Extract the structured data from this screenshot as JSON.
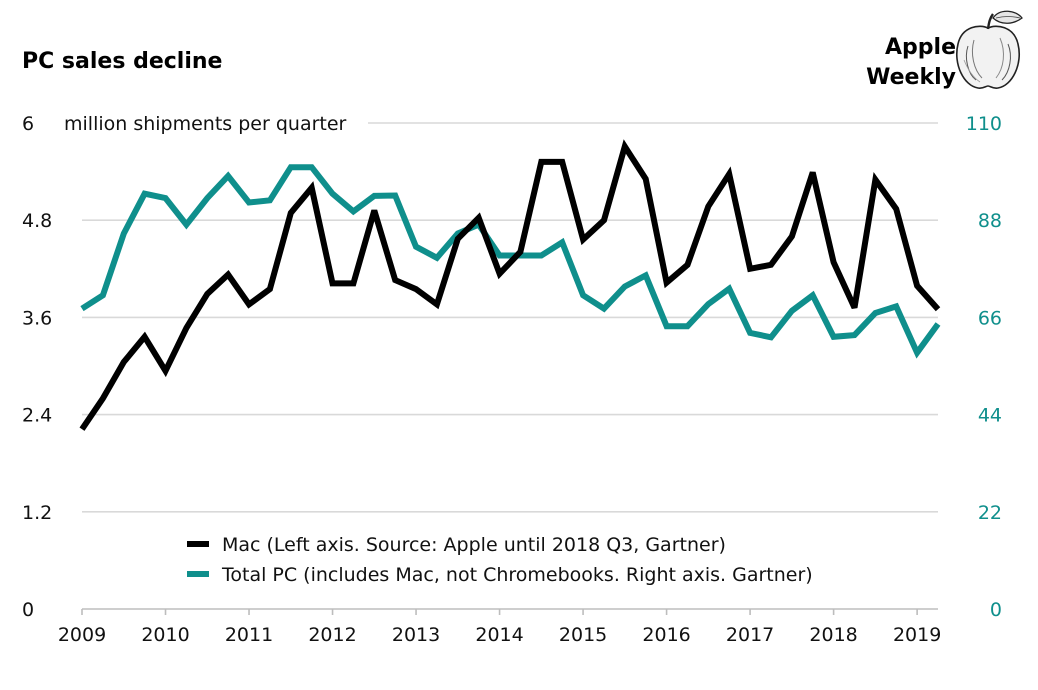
{
  "header": {
    "title": "PC sales decline",
    "brand_line1": "Apple",
    "brand_line2": "Weekly"
  },
  "logo": {
    "icon": "apple-engraving-icon"
  },
  "colors": {
    "mac": "#000000",
    "total_pc": "#0f8f8c",
    "grid": "#d9d9d9"
  },
  "chart_data": {
    "type": "line",
    "title": "PC sales decline",
    "left_axis": {
      "unit_label": "million shipments per quarter",
      "ylim": [
        0,
        6
      ],
      "ticks": [
        0,
        1.2,
        2.4,
        3.6,
        4.8,
        6
      ]
    },
    "right_axis": {
      "ylim": [
        0,
        110
      ],
      "ticks": [
        0,
        22,
        44,
        66,
        88,
        110
      ]
    },
    "x_axis": {
      "xlim": [
        2009.0,
        2019.25
      ],
      "ticks": [
        "2009",
        "2010",
        "2011",
        "2012",
        "2013",
        "2014",
        "2015",
        "2016",
        "2017",
        "2018",
        "2019"
      ]
    },
    "grid": true,
    "legend_placement": "bottom-center",
    "series": [
      {
        "name": "Mac (Left axis. Source: Apple until 2018 Q3, Gartner)",
        "axis": "left",
        "x": [
          "2009 Q1",
          "2009 Q2",
          "2009 Q3",
          "2009 Q4",
          "2010 Q1",
          "2010 Q2",
          "2010 Q3",
          "2010 Q4",
          "2011 Q1",
          "2011 Q2",
          "2011 Q3",
          "2011 Q4",
          "2012 Q1",
          "2012 Q2",
          "2012 Q3",
          "2012 Q4",
          "2013 Q1",
          "2013 Q2",
          "2013 Q3",
          "2013 Q4",
          "2014 Q1",
          "2014 Q2",
          "2014 Q3",
          "2014 Q4",
          "2015 Q1",
          "2015 Q2",
          "2015 Q3",
          "2015 Q4",
          "2016 Q1",
          "2016 Q2",
          "2016 Q3",
          "2016 Q4",
          "2017 Q1",
          "2017 Q2",
          "2017 Q3",
          "2017 Q4",
          "2018 Q1",
          "2018 Q2",
          "2018 Q3",
          "2018 Q4",
          "2019 Q1",
          "2019 Q2"
        ],
        "values": [
          2.22,
          2.6,
          3.05,
          3.36,
          2.94,
          3.47,
          3.89,
          4.13,
          3.76,
          3.95,
          4.89,
          5.2,
          4.02,
          4.02,
          4.92,
          4.06,
          3.95,
          3.76,
          4.57,
          4.83,
          4.14,
          4.41,
          5.52,
          5.52,
          4.56,
          4.8,
          5.71,
          5.31,
          4.03,
          4.25,
          4.97,
          5.37,
          4.2,
          4.25,
          4.6,
          5.39,
          4.28,
          3.72,
          5.3,
          4.94,
          3.99,
          3.7
        ]
      },
      {
        "name": "Total PC (includes Mac, not Chromebooks. Right axis. Gartner)",
        "axis": "right",
        "x": [
          "2009 Q1",
          "2009 Q2",
          "2009 Q3",
          "2009 Q4",
          "2010 Q1",
          "2010 Q2",
          "2010 Q3",
          "2010 Q4",
          "2011 Q1",
          "2011 Q2",
          "2011 Q3",
          "2011 Q4",
          "2012 Q1",
          "2012 Q2",
          "2012 Q3",
          "2012 Q4",
          "2013 Q1",
          "2013 Q2",
          "2013 Q3",
          "2013 Q4",
          "2014 Q1",
          "2014 Q2",
          "2014 Q3",
          "2014 Q4",
          "2015 Q1",
          "2015 Q2",
          "2015 Q3",
          "2015 Q4",
          "2016 Q1",
          "2016 Q2",
          "2016 Q3",
          "2016 Q4",
          "2017 Q1",
          "2017 Q2",
          "2017 Q3",
          "2017 Q4",
          "2018 Q1",
          "2018 Q2",
          "2018 Q3",
          "2018 Q4",
          "2019 Q1",
          "2019 Q2"
        ],
        "values": [
          68,
          71,
          85,
          94,
          93,
          87,
          93,
          98,
          92,
          92.5,
          100,
          100,
          94,
          90,
          93.5,
          93.6,
          82,
          79.5,
          85,
          87,
          80,
          80,
          80,
          83,
          71,
          68,
          73,
          75.5,
          64,
          64,
          69,
          72.5,
          62.5,
          61.5,
          67.5,
          71,
          61.6,
          62,
          67,
          68.5,
          58,
          64.5
        ]
      }
    ]
  }
}
